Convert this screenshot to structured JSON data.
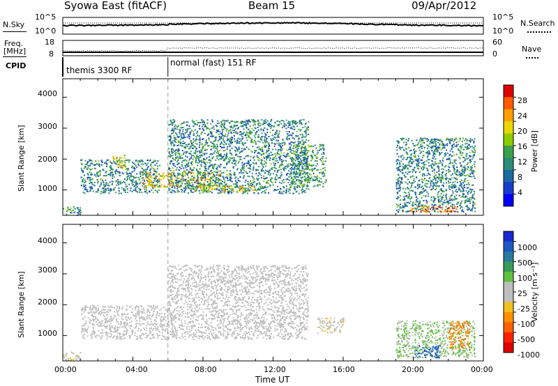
{
  "header": {
    "station": "Syowa East (fitACF)",
    "beam": "Beam 15",
    "date": "09/Apr/2012"
  },
  "strip1": {
    "left_label": "N.Sky",
    "left_ticks": [
      "10^5",
      "10^0"
    ],
    "right_ticks": [
      "10^5",
      "10^0"
    ],
    "right_label": "N.Search"
  },
  "strip2": {
    "left_label_1": "Freq.",
    "left_label_2": "[MHz]",
    "left_ticks": [
      "18",
      "8"
    ],
    "right_ticks": [
      "60",
      "0"
    ],
    "right_label": "Nave"
  },
  "cpid": {
    "label": "CPID",
    "modes": [
      {
        "text": "themis 3300 RF",
        "start_hour": 0
      },
      {
        "text": "normal (fast) 151 RF",
        "start_hour": 6
      }
    ]
  },
  "x_axis": {
    "label": "Time UT",
    "ticks": [
      "00:00",
      "04:00",
      "08:00",
      "12:00",
      "16:00",
      "20:00",
      "00:00"
    ],
    "range_hours": [
      0,
      24
    ]
  },
  "power_panel": {
    "ylabel": "Slant Range [km]",
    "yticks": [
      "4000",
      "3000",
      "2000",
      "1000"
    ],
    "cbar_label": "Power [dB]",
    "cbar_ticks": [
      "28",
      "24",
      "20",
      "16",
      "12",
      "8",
      "4"
    ],
    "cbar_colors": [
      "#e00000",
      "#ff5a00",
      "#ffa000",
      "#e8d800",
      "#8ccc00",
      "#3aa04a",
      "#2e8c78",
      "#1c6aa0",
      "#1a3ccc",
      "#0000ff"
    ]
  },
  "velocity_panel": {
    "ylabel": "Slant Range [km]",
    "yticks": [
      "4000",
      "3000",
      "2000",
      "1000"
    ],
    "cbar_label": "Velocity [m s⁻¹]",
    "cbar_ticks": [
      "1000",
      "500",
      "100",
      "25",
      "-25",
      "-100",
      "-500",
      "-1000"
    ],
    "cbar_colors": [
      "#1a2ad0",
      "#1a5ac0",
      "#2a7a9c",
      "#3a9a5a",
      "#60c040",
      "#bebebe",
      "#bebebe",
      "#f0c020",
      "#ff9000",
      "#ff6000",
      "#ff2000",
      "#e00000"
    ]
  },
  "chart_data": [
    {
      "type": "heatmap",
      "title": "Power",
      "xlabel": "Time UT",
      "ylabel": "Slant Range [km]",
      "xlim": [
        0,
        24
      ],
      "ylim": [
        180,
        4600
      ],
      "colorbar": {
        "label": "Power [dB]",
        "range": [
          0,
          32
        ]
      },
      "regions": [
        {
          "t": [
            0.0,
            1.0
          ],
          "range_km": [
            200,
            500
          ],
          "power_db": 12
        },
        {
          "t": [
            1.0,
            5.5
          ],
          "range_km": [
            900,
            2000
          ],
          "power_db": 10
        },
        {
          "t": [
            2.8,
            3.6
          ],
          "range_km": [
            1750,
            2150
          ],
          "power_db": 20
        },
        {
          "t": [
            4.5,
            9.0
          ],
          "range_km": [
            1100,
            1600
          ],
          "power_db": 22
        },
        {
          "t": [
            6.0,
            14.0
          ],
          "range_km": [
            900,
            3300
          ],
          "power_db": 10
        },
        {
          "t": [
            7.5,
            11.0
          ],
          "range_km": [
            950,
            1150
          ],
          "power_db": 20
        },
        {
          "t": [
            13.0,
            15.0
          ],
          "range_km": [
            1100,
            2500
          ],
          "power_db": 12
        },
        {
          "t": [
            19.0,
            23.5
          ],
          "range_km": [
            300,
            2700
          ],
          "power_db": 10
        },
        {
          "t": [
            19.8,
            22.5
          ],
          "range_km": [
            300,
            500
          ],
          "power_db": 28
        }
      ]
    },
    {
      "type": "heatmap",
      "title": "Velocity",
      "xlabel": "Time UT",
      "ylabel": "Slant Range [km]",
      "xlim": [
        0,
        24
      ],
      "ylim": [
        180,
        4600
      ],
      "colorbar": {
        "label": "Velocity [m s⁻¹]",
        "range": [
          -1000,
          1000
        ]
      },
      "regions": [
        {
          "t": [
            0.0,
            1.0
          ],
          "range_km": [
            200,
            500
          ],
          "velocity": -100
        },
        {
          "t": [
            1.0,
            6.0
          ],
          "range_km": [
            900,
            2000
          ],
          "velocity": 0
        },
        {
          "t": [
            6.0,
            14.0
          ],
          "range_km": [
            900,
            3300
          ],
          "velocity": 0
        },
        {
          "t": [
            14.5,
            16.0
          ],
          "range_km": [
            1100,
            1600
          ],
          "velocity": -100
        },
        {
          "t": [
            19.0,
            23.5
          ],
          "range_km": [
            300,
            1500
          ],
          "velocity": 200
        },
        {
          "t": [
            20.0,
            21.5
          ],
          "range_km": [
            300,
            700
          ],
          "velocity": 800
        },
        {
          "t": [
            22.0,
            23.2
          ],
          "range_km": [
            600,
            1500
          ],
          "velocity": -500
        }
      ]
    }
  ]
}
